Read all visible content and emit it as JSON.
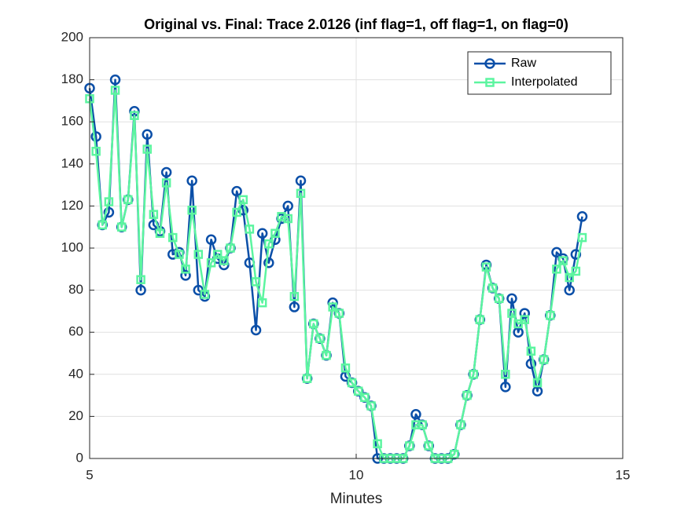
{
  "chart_data": {
    "type": "line",
    "title": "Original vs. Final: Trace 2.0126 (inf flag=1, off flag=1, on flag=0)",
    "x_label": "Minutes",
    "x": [
      5,
      5.12,
      5.24,
      5.36,
      5.48,
      5.6,
      5.72,
      5.84,
      5.96,
      6.08,
      6.2,
      6.32,
      6.44,
      6.56,
      6.68,
      6.8,
      6.92,
      7.04,
      7.16,
      7.28,
      7.4,
      7.52,
      7.64,
      7.76,
      7.88,
      8,
      8.12,
      8.24,
      8.36,
      8.48,
      8.6,
      8.72,
      8.84,
      8.96,
      9.08,
      9.2,
      9.32,
      9.44,
      9.56,
      9.68,
      9.8,
      9.92,
      10.04,
      10.16,
      10.28,
      10.4,
      10.52,
      10.64,
      10.76,
      10.88,
      11,
      11.12,
      11.24,
      11.36,
      11.48,
      11.6,
      11.72,
      11.84,
      11.96,
      12.08,
      12.2,
      12.32,
      12.44,
      12.56,
      12.68,
      12.8,
      12.92,
      13.04,
      13.16,
      13.28,
      13.4,
      13.52,
      13.64,
      13.76,
      13.88,
      14,
      14.12,
      14.24
    ],
    "series": [
      {
        "name": "Raw",
        "color": "#0b4fa8",
        "marker": "circle",
        "values": [
          176,
          153,
          111,
          117,
          180,
          110,
          123,
          165,
          80,
          154,
          111,
          108,
          136,
          97,
          98,
          87,
          132,
          80,
          77,
          104,
          95,
          92,
          100,
          127,
          118,
          93,
          61,
          107,
          93,
          104,
          114,
          120,
          72,
          132,
          38,
          64,
          57,
          49,
          74,
          69,
          39,
          36,
          32,
          29,
          25,
          0,
          0,
          0,
          0,
          0,
          6,
          21,
          16,
          6,
          0,
          0,
          0,
          2,
          16,
          30,
          40,
          66,
          92,
          81,
          76,
          34,
          76,
          60,
          69,
          45,
          32,
          47,
          68,
          98,
          95,
          80,
          97,
          115
        ]
      },
      {
        "name": "Interpolated",
        "color": "#5cf5a0",
        "marker": "square",
        "values": [
          171,
          146,
          111,
          122,
          175,
          110,
          123,
          163,
          85,
          147,
          116,
          107,
          131,
          105,
          97,
          90,
          118,
          97,
          78,
          93,
          97,
          94,
          100,
          117,
          123,
          109,
          84,
          74,
          102,
          107,
          115,
          114,
          77,
          126,
          38,
          64,
          57,
          49,
          72,
          69,
          43,
          36,
          32,
          29,
          25,
          7,
          0,
          0,
          0,
          0,
          6,
          16,
          16,
          6,
          0,
          0,
          0,
          2,
          16,
          30,
          40,
          66,
          91,
          81,
          76,
          40,
          69,
          64,
          66,
          51,
          36,
          47,
          68,
          90,
          94,
          86,
          89,
          105
        ]
      }
    ],
    "xlim": [
      5,
      15
    ],
    "xticks": [
      5,
      10,
      15
    ],
    "ylim": [
      0,
      200
    ],
    "yticks": [
      0,
      20,
      40,
      60,
      80,
      100,
      120,
      140,
      160,
      180,
      200
    ],
    "grid": true,
    "legend": "northeast"
  }
}
